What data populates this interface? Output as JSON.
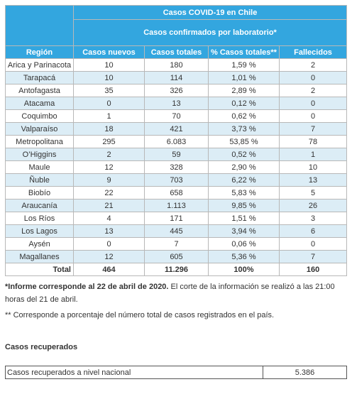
{
  "table": {
    "title": "Casos COVID-19 en Chile",
    "subtitle": "Casos confirmados por laboratorio*",
    "headers": [
      "Región",
      "Casos nuevos",
      "Casos totales",
      "% Casos totales**",
      "Fallecidos"
    ],
    "rows": [
      [
        "Arica y Parinacota",
        "10",
        "180",
        "1,59 %",
        "2"
      ],
      [
        "Tarapacá",
        "10",
        "114",
        "1,01 %",
        "0"
      ],
      [
        "Antofagasta",
        "35",
        "326",
        "2,89 %",
        "2"
      ],
      [
        "Atacama",
        "0",
        "13",
        "0,12 %",
        "0"
      ],
      [
        "Coquimbo",
        "1",
        "70",
        "0,62 %",
        "0"
      ],
      [
        "Valparaíso",
        "18",
        "421",
        "3,73 %",
        "7"
      ],
      [
        "Metropolitana",
        "295",
        "6.083",
        "53,85 %",
        "78"
      ],
      [
        "O’Higgins",
        "2",
        "59",
        "0,52 %",
        "1"
      ],
      [
        "Maule",
        "12",
        "328",
        "2,90 %",
        "10"
      ],
      [
        "Ñuble",
        "9",
        "703",
        "6,22 %",
        "13"
      ],
      [
        "Biobío",
        "22",
        "658",
        "5,83 %",
        "5"
      ],
      [
        "Araucanía",
        "21",
        "1.113",
        "9,85 %",
        "26"
      ],
      [
        "Los Ríos",
        "4",
        "171",
        "1,51 %",
        "3"
      ],
      [
        "Los Lagos",
        "13",
        "445",
        "3,94 %",
        "6"
      ],
      [
        "Aysén",
        "0",
        "7",
        "0,06 %",
        "0"
      ],
      [
        "Magallanes",
        "12",
        "605",
        "5,36 %",
        "7"
      ]
    ],
    "total": [
      "Total",
      "464",
      "11.296",
      "100%",
      "160"
    ]
  },
  "notes": {
    "note1_bold": "*Informe corresponde al 22 de abril de 2020.",
    "note1_rest": " El corte de la información se realizó a las 21:00 horas del 21 de abril.",
    "note2": "** Corresponde a porcentaje del número total de casos registrados en el país."
  },
  "recovered": {
    "title": "Casos recuperados",
    "label": "Casos recuperados a nivel nacional",
    "value": "5.386"
  },
  "colors": {
    "header_blue": "#33a6df",
    "alt_row": "#dcedf6"
  }
}
